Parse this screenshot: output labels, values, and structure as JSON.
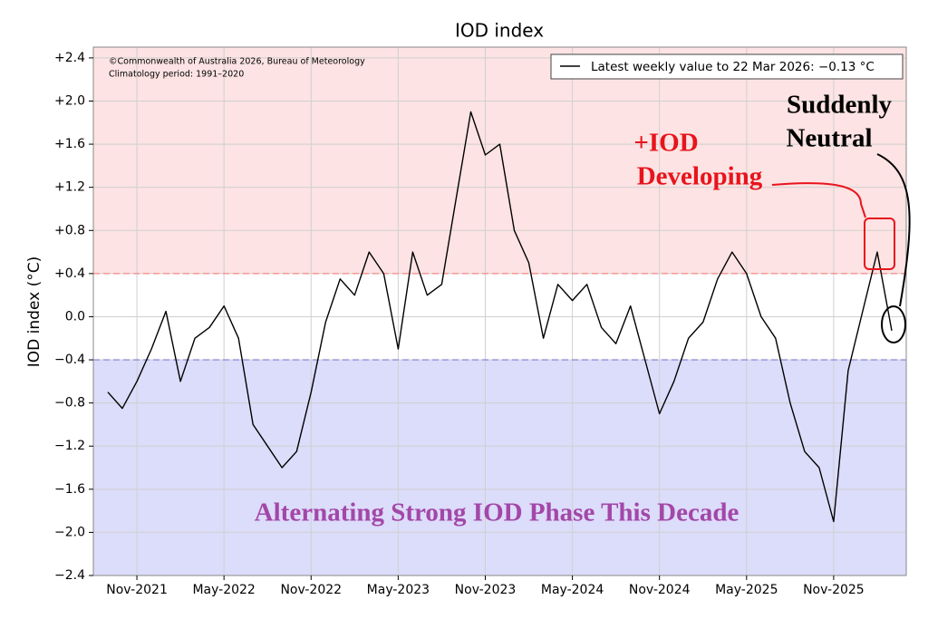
{
  "chart_data": {
    "type": "line",
    "title": "IOD index",
    "y_label": "IOD index (°C)",
    "annotations": [
      "©Commonwealth of Australia 2026, Bureau of Meteorology",
      "Climatology period: 1991–2020",
      "+IOD",
      "Developing",
      "Suddenly",
      "Neutral",
      "Alternating Strong IOD Phase This Decade"
    ],
    "x": [
      "2021-09",
      "2021-10",
      "2021-11",
      "2021-12",
      "2022-01",
      "2022-02",
      "2022-03",
      "2022-04",
      "2022-05",
      "2022-06",
      "2022-07",
      "2022-08",
      "2022-09",
      "2022-10",
      "2022-11",
      "2022-12",
      "2023-01",
      "2023-02",
      "2023-03",
      "2023-04",
      "2023-05",
      "2023-06",
      "2023-07",
      "2023-08",
      "2023-09",
      "2023-10",
      "2023-11",
      "2023-12",
      "2024-01",
      "2024-02",
      "2024-03",
      "2024-04",
      "2024-05",
      "2024-06",
      "2024-07",
      "2024-08",
      "2024-09",
      "2024-10",
      "2024-11",
      "2024-12",
      "2025-01",
      "2025-02",
      "2025-03",
      "2025-04",
      "2025-05",
      "2025-06",
      "2025-07",
      "2025-08",
      "2025-09",
      "2025-10",
      "2025-11",
      "2025-12",
      "2026-01",
      "2026-02",
      "2026-03"
    ],
    "series": [
      {
        "name": "Latest weekly value to 22 Mar 2026: −0.13 °C",
        "color": "#000000",
        "values": [
          -0.7,
          -0.85,
          -0.6,
          -0.3,
          0.05,
          -0.6,
          -0.2,
          -0.1,
          0.1,
          -0.2,
          -1.0,
          -1.2,
          -1.4,
          -1.25,
          -0.7,
          -0.05,
          0.35,
          0.2,
          0.6,
          0.4,
          -0.3,
          0.6,
          0.2,
          0.3,
          1.1,
          1.9,
          1.5,
          1.6,
          0.8,
          0.5,
          -0.2,
          0.3,
          0.15,
          0.3,
          -0.1,
          -0.25,
          0.1,
          -0.4,
          -0.9,
          -0.6,
          -0.2,
          -0.05,
          0.35,
          0.6,
          0.4,
          0.0,
          -0.2,
          -0.8,
          -1.25,
          -1.4,
          -1.9,
          -0.5,
          0.05,
          0.6,
          -0.13
        ]
      }
    ],
    "xlim": [
      "2021-08",
      "2026-04"
    ],
    "xticks": [
      {
        "value": "2021-11",
        "label": "Nov-2021"
      },
      {
        "value": "2022-05",
        "label": "May-2022"
      },
      {
        "value": "2022-11",
        "label": "Nov-2022"
      },
      {
        "value": "2023-05",
        "label": "May-2023"
      },
      {
        "value": "2023-11",
        "label": "Nov-2023"
      },
      {
        "value": "2024-05",
        "label": "May-2024"
      },
      {
        "value": "2024-11",
        "label": "Nov-2024"
      },
      {
        "value": "2025-05",
        "label": "May-2025"
      },
      {
        "value": "2025-11",
        "label": "Nov-2025"
      }
    ],
    "ylim": [
      -2.4,
      2.5
    ],
    "yticks": [
      {
        "value": 2.4,
        "label": "+2.4"
      },
      {
        "value": 2.0,
        "label": "+2.0"
      },
      {
        "value": 1.6,
        "label": "+1.6"
      },
      {
        "value": 1.2,
        "label": "+1.2"
      },
      {
        "value": 0.8,
        "label": "+0.8"
      },
      {
        "value": 0.4,
        "label": "+0.4"
      },
      {
        "value": 0.0,
        "label": "0.0"
      },
      {
        "value": -0.4,
        "label": "−0.4"
      },
      {
        "value": -0.8,
        "label": "−0.8"
      },
      {
        "value": -1.2,
        "label": "−1.2"
      },
      {
        "value": -1.6,
        "label": "−1.6"
      },
      {
        "value": -2.0,
        "label": "−2.0"
      },
      {
        "value": -2.4,
        "label": "−2.4"
      }
    ],
    "grid": true,
    "thresholds": [
      {
        "value": 0.4,
        "color": "#ff7070",
        "fill": "#fde3e3"
      },
      {
        "value": -0.4,
        "color": "#7070d0",
        "fill": "#dcdcfb"
      }
    ]
  }
}
